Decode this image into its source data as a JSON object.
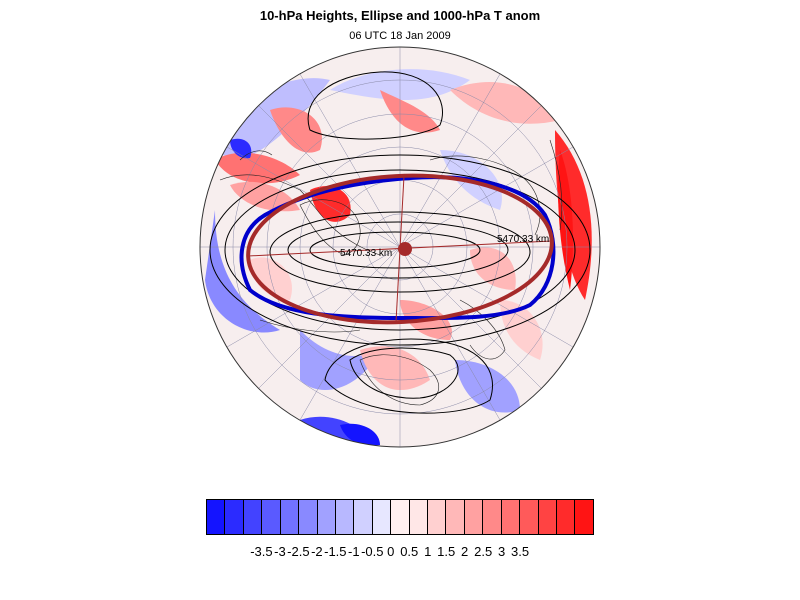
{
  "header": {
    "title": "10-hPa Heights, Ellipse and 1000-hPa T anom",
    "subtitle": "06 UTC 18 Jan 2009"
  },
  "map": {
    "projection": "north-polar-stereographic",
    "ellipse_axis_label_left": "5470.33 km",
    "ellipse_axis_label_right": "5470.33 km",
    "colors": {
      "ellipse": "#a52a2a",
      "vortex_edge_contour": "#0000cc",
      "height_contours": "#000000",
      "gridlines": "#8a8aa8"
    }
  },
  "colorbar": {
    "colors": [
      "#1414ff",
      "#2b2bff",
      "#4343ff",
      "#5a5aff",
      "#7272ff",
      "#8989ff",
      "#a1a1ff",
      "#b8b8ff",
      "#d0d0ff",
      "#e7e7ff",
      "#fff0f0",
      "#ffe7e7",
      "#ffd0d0",
      "#ffb8b8",
      "#ffa1a1",
      "#ff8989",
      "#ff7272",
      "#ff5a5a",
      "#ff4343",
      "#ff2b2b",
      "#ff1414"
    ],
    "labels": [
      "-3.5",
      "-3",
      "-2.5",
      "-2",
      "-1.5",
      "-1",
      "-0.5",
      "0",
      "0.5",
      "1",
      "1.5",
      "2",
      "2.5",
      "3",
      "3.5"
    ]
  }
}
